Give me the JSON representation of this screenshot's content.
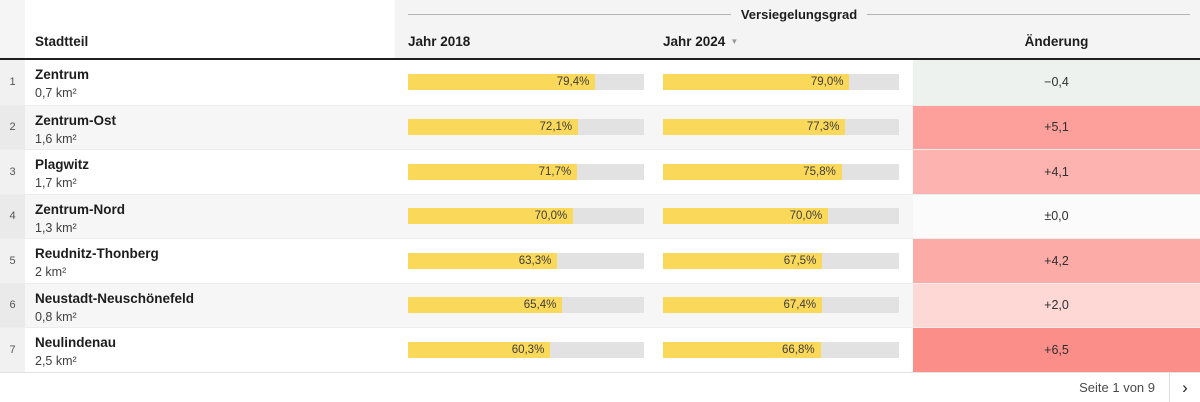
{
  "table": {
    "group_header": "Versiegelungsgrad",
    "columns": {
      "stadtteil": "Stadtteil",
      "y2018": "Jahr 2018",
      "y2024": "Jahr 2024",
      "aenderung": "Änderung"
    },
    "sort_icon": "▼",
    "rows": [
      {
        "num": "1",
        "name": "Zentrum",
        "area": "0,7 km²",
        "v2018": "79,4%",
        "p2018": 79.4,
        "v2024": "79,0%",
        "p2024": 79.0,
        "change": "−0,4",
        "change_bg": "#edf2ee"
      },
      {
        "num": "2",
        "name": "Zentrum-Ost",
        "area": "1,6 km²",
        "v2018": "72,1%",
        "p2018": 72.1,
        "v2024": "77,3%",
        "p2024": 77.3,
        "change": "+5,1",
        "change_bg": "#fda09c"
      },
      {
        "num": "3",
        "name": "Plagwitz",
        "area": "1,7 km²",
        "v2018": "71,7%",
        "p2018": 71.7,
        "v2024": "75,8%",
        "p2024": 75.8,
        "change": "+4,1",
        "change_bg": "#fdb3af"
      },
      {
        "num": "4",
        "name": "Zentrum-Nord",
        "area": "1,3 km²",
        "v2018": "70,0%",
        "p2018": 70.0,
        "v2024": "70,0%",
        "p2024": 70.0,
        "change": "±0,0",
        "change_bg": "#fbfbfb"
      },
      {
        "num": "5",
        "name": "Reudnitz-Thonberg",
        "area": "2 km²",
        "v2018": "63,3%",
        "p2018": 63.3,
        "v2024": "67,5%",
        "p2024": 67.5,
        "change": "+4,2",
        "change_bg": "#fcaba7"
      },
      {
        "num": "6",
        "name": "Neustadt-Neuschönefeld",
        "area": "0,8 km²",
        "v2018": "65,4%",
        "p2018": 65.4,
        "v2024": "67,4%",
        "p2024": 67.4,
        "change": "+2,0",
        "change_bg": "#fdd8d5"
      },
      {
        "num": "7",
        "name": "Neulindenau",
        "area": "2,5 km²",
        "v2018": "60,3%",
        "p2018": 60.3,
        "v2024": "66,8%",
        "p2024": 66.8,
        "change": "+6,5",
        "change_bg": "#fc8e89"
      }
    ]
  },
  "footer": {
    "page_label": "Seite 1 von 9",
    "next_icon": "›"
  },
  "colors": {
    "bar_fill": "#fad85a",
    "bar_track": "#e2e2e2",
    "header_rule": "#1f1f1f",
    "increase_strong": "#fc8e89",
    "decrease_light": "#edf2ee"
  },
  "chart_data": {
    "type": "table",
    "group_header": "Versiegelungsgrad",
    "columns": [
      "Stadtteil",
      "Jahr 2018",
      "Jahr 2024",
      "Änderung"
    ],
    "sorted_by": "Jahr 2024",
    "sort_direction": "desc",
    "bar_scale": [
      0,
      100
    ],
    "rows": [
      {
        "rank": 1,
        "stadtteil": "Zentrum",
        "flaeche": "0,7 km²",
        "jahr_2018_pct": 79.4,
        "jahr_2024_pct": 79.0,
        "aenderung": -0.4
      },
      {
        "rank": 2,
        "stadtteil": "Zentrum-Ost",
        "flaeche": "1,6 km²",
        "jahr_2018_pct": 72.1,
        "jahr_2024_pct": 77.3,
        "aenderung": 5.1
      },
      {
        "rank": 3,
        "stadtteil": "Plagwitz",
        "flaeche": "1,7 km²",
        "jahr_2018_pct": 71.7,
        "jahr_2024_pct": 75.8,
        "aenderung": 4.1
      },
      {
        "rank": 4,
        "stadtteil": "Zentrum-Nord",
        "flaeche": "1,3 km²",
        "jahr_2018_pct": 70.0,
        "jahr_2024_pct": 70.0,
        "aenderung": 0.0
      },
      {
        "rank": 5,
        "stadtteil": "Reudnitz-Thonberg",
        "flaeche": "2 km²",
        "jahr_2018_pct": 63.3,
        "jahr_2024_pct": 67.5,
        "aenderung": 4.2
      },
      {
        "rank": 6,
        "stadtteil": "Neustadt-Neuschönefeld",
        "flaeche": "0,8 km²",
        "jahr_2018_pct": 65.4,
        "jahr_2024_pct": 67.4,
        "aenderung": 2.0
      },
      {
        "rank": 7,
        "stadtteil": "Neulindenau",
        "flaeche": "2,5 km²",
        "jahr_2018_pct": 60.3,
        "jahr_2024_pct": 66.8,
        "aenderung": 6.5
      }
    ],
    "pagination": "Seite 1 von 9"
  }
}
